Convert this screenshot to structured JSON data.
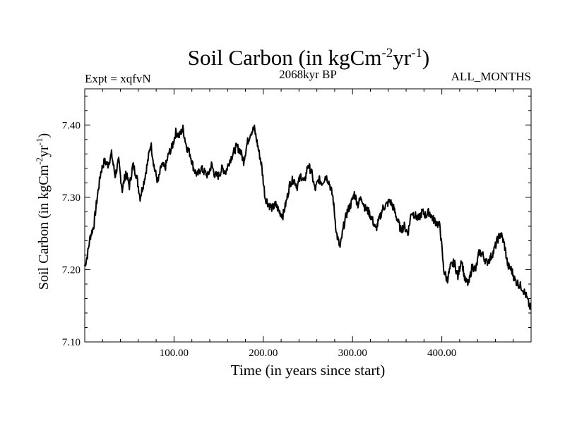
{
  "chart_data": {
    "type": "line",
    "title_main": "Soil Carbon (in kgCm",
    "title_sup1": "-2",
    "title_mid": "yr",
    "title_sup2": "-1",
    "title_end": ")",
    "subtitle_left": "Expt = xqfvN",
    "subtitle_center": "2068kyr BP",
    "subtitle_right": "ALL_MONTHS",
    "xlabel": "Time (in years since start)",
    "ylabel_main": "Soil Carbon (in kgCm",
    "ylabel_sup1": "-2",
    "ylabel_mid": "yr",
    "ylabel_sup2": "-1",
    "ylabel_end": ")",
    "xlim": [
      0,
      500
    ],
    "ylim": [
      7.1,
      7.45
    ],
    "xticks": [
      100,
      200,
      300,
      400
    ],
    "xtick_labels": [
      "100.00",
      "200.00",
      "300.00",
      "400.00"
    ],
    "yticks": [
      7.1,
      7.2,
      7.3,
      7.4
    ],
    "ytick_labels": [
      "7.10",
      "7.20",
      "7.30",
      "7.40"
    ],
    "series": [
      {
        "name": "Soil Carbon",
        "color": "#000000",
        "x": [
          0,
          3,
          6,
          10,
          14,
          18,
          22,
          26,
          30,
          34,
          38,
          42,
          46,
          50,
          54,
          58,
          62,
          66,
          70,
          74,
          78,
          82,
          86,
          90,
          94,
          98,
          102,
          106,
          110,
          114,
          118,
          122,
          126,
          130,
          134,
          138,
          142,
          146,
          150,
          154,
          158,
          162,
          166,
          170,
          174,
          178,
          182,
          186,
          190,
          194,
          198,
          202,
          206,
          210,
          214,
          218,
          222,
          226,
          230,
          234,
          238,
          242,
          246,
          250,
          254,
          258,
          262,
          266,
          270,
          274,
          278,
          282,
          286,
          290,
          294,
          298,
          302,
          306,
          310,
          314,
          318,
          322,
          326,
          330,
          334,
          338,
          342,
          346,
          350,
          354,
          358,
          362,
          366,
          370,
          374,
          378,
          382,
          386,
          390,
          394,
          398,
          402,
          406,
          410,
          414,
          418,
          422,
          426,
          430,
          434,
          438,
          442,
          446,
          450,
          454,
          458,
          462,
          466,
          470,
          474,
          478,
          482,
          486,
          490,
          494,
          498,
          500
        ],
        "values": [
          7.205,
          7.22,
          7.245,
          7.26,
          7.3,
          7.335,
          7.35,
          7.345,
          7.36,
          7.33,
          7.35,
          7.31,
          7.335,
          7.315,
          7.345,
          7.33,
          7.3,
          7.32,
          7.345,
          7.375,
          7.34,
          7.32,
          7.345,
          7.34,
          7.36,
          7.37,
          7.39,
          7.385,
          7.395,
          7.37,
          7.36,
          7.34,
          7.33,
          7.34,
          7.335,
          7.33,
          7.345,
          7.33,
          7.33,
          7.34,
          7.335,
          7.35,
          7.36,
          7.37,
          7.365,
          7.35,
          7.375,
          7.39,
          7.395,
          7.37,
          7.345,
          7.3,
          7.29,
          7.285,
          7.29,
          7.28,
          7.275,
          7.295,
          7.32,
          7.325,
          7.315,
          7.33,
          7.32,
          7.345,
          7.335,
          7.31,
          7.325,
          7.32,
          7.33,
          7.32,
          7.3,
          7.25,
          7.23,
          7.26,
          7.28,
          7.29,
          7.305,
          7.29,
          7.3,
          7.285,
          7.28,
          7.27,
          7.255,
          7.27,
          7.285,
          7.29,
          7.295,
          7.285,
          7.27,
          7.255,
          7.26,
          7.25,
          7.28,
          7.275,
          7.27,
          7.28,
          7.275,
          7.28,
          7.27,
          7.265,
          7.26,
          7.2,
          7.185,
          7.205,
          7.21,
          7.19,
          7.215,
          7.185,
          7.18,
          7.205,
          7.2,
          7.225,
          7.22,
          7.21,
          7.215,
          7.225,
          7.24,
          7.25,
          7.235,
          7.205,
          7.2,
          7.185,
          7.18,
          7.175,
          7.165,
          7.15,
          7.145
        ]
      }
    ]
  }
}
